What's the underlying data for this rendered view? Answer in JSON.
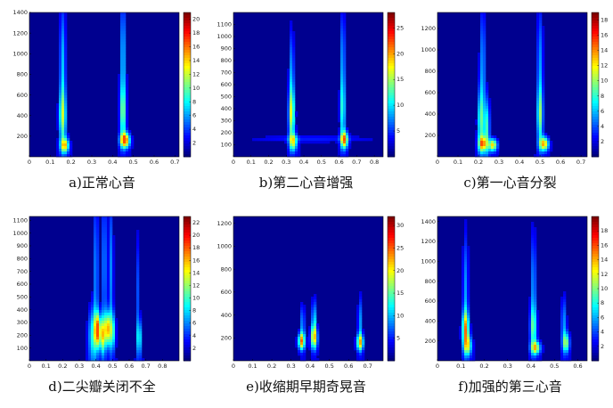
{
  "colors": {
    "jet_dark": "#00008f",
    "jet_blue": "#0000ff",
    "jet_cyan": "#00ffff",
    "jet_yellow": "#ffff00",
    "jet_red": "#ff0000",
    "jet_darkred": "#800000"
  },
  "chart_data": [
    {
      "type": "heatmap",
      "caption": "a)正常心音",
      "x_ticks": [
        "0",
        "0.1",
        "0.2",
        "0.3",
        "0.4",
        "0.5",
        "0.6",
        "0.7"
      ],
      "xlim": [
        0,
        0.72
      ],
      "y_ticks": [
        "200",
        "400",
        "600",
        "800",
        "1000",
        "1200",
        "1400"
      ],
      "ylim": [
        0,
        1400
      ],
      "colorbar_ticks": [
        "2",
        "4",
        "6",
        "8",
        "10",
        "12",
        "14",
        "16",
        "18",
        "20"
      ],
      "colorbar_max": 21,
      "components": [
        {
          "x": 0.16,
          "y": 390,
          "intensity": 0.55,
          "width": 0.012,
          "height": 180
        },
        {
          "x": 0.17,
          "y": 110,
          "intensity": 0.75,
          "width": 0.014,
          "height": 50
        },
        {
          "x": 0.16,
          "y": 900,
          "intensity": 0.35,
          "width": 0.01,
          "height": 400
        },
        {
          "x": 0.46,
          "y": 160,
          "intensity": 1.0,
          "width": 0.016,
          "height": 50
        },
        {
          "x": 0.45,
          "y": 420,
          "intensity": 0.5,
          "width": 0.01,
          "height": 180
        },
        {
          "x": 0.45,
          "y": 950,
          "intensity": 0.35,
          "width": 0.01,
          "height": 420
        }
      ]
    },
    {
      "type": "heatmap",
      "caption": "b)第二心音增强",
      "x_ticks": [
        "0",
        "0.1",
        "0.2",
        "0.3",
        "0.4",
        "0.5",
        "0.6",
        "0.7",
        "0.8"
      ],
      "xlim": [
        0,
        0.85
      ],
      "y_ticks": [
        "100",
        "200",
        "300",
        "400",
        "500",
        "600",
        "700",
        "800",
        "900",
        "1000",
        "1100"
      ],
      "ylim": [
        0,
        1200
      ],
      "colorbar_ticks": [
        "5",
        "10",
        "15",
        "20",
        "25"
      ],
      "colorbar_max": 28,
      "components": [
        {
          "x": 0.33,
          "y": 350,
          "intensity": 0.65,
          "width": 0.012,
          "height": 150
        },
        {
          "x": 0.34,
          "y": 120,
          "intensity": 0.6,
          "width": 0.016,
          "height": 50
        },
        {
          "x": 0.33,
          "y": 700,
          "intensity": 0.3,
          "width": 0.01,
          "height": 250
        },
        {
          "x": 0.63,
          "y": 140,
          "intensity": 0.85,
          "width": 0.014,
          "height": 50
        },
        {
          "x": 0.62,
          "y": 380,
          "intensity": 0.45,
          "width": 0.01,
          "height": 180
        },
        {
          "x": 0.62,
          "y": 820,
          "intensity": 0.3,
          "width": 0.01,
          "height": 280
        },
        {
          "x": 0.45,
          "y": 150,
          "intensity": 0.12,
          "width": 0.25,
          "height": 20
        }
      ]
    },
    {
      "type": "heatmap",
      "caption": "c)第一心音分裂",
      "x_ticks": [
        "0",
        "0.1",
        "0.2",
        "0.3",
        "0.4",
        "0.5",
        "0.6",
        "0.7"
      ],
      "xlim": [
        0,
        0.73
      ],
      "y_ticks": [
        "200",
        "400",
        "600",
        "800",
        "1000",
        "1200"
      ],
      "ylim": [
        0,
        1350
      ],
      "colorbar_ticks": [
        "2",
        "4",
        "6",
        "8",
        "10",
        "12",
        "14",
        "16",
        "18"
      ],
      "colorbar_max": 19,
      "components": [
        {
          "x": 0.21,
          "y": 340,
          "intensity": 0.5,
          "width": 0.01,
          "height": 200
        },
        {
          "x": 0.24,
          "y": 280,
          "intensity": 0.5,
          "width": 0.01,
          "height": 180
        },
        {
          "x": 0.22,
          "y": 120,
          "intensity": 0.75,
          "width": 0.014,
          "height": 50
        },
        {
          "x": 0.27,
          "y": 110,
          "intensity": 0.8,
          "width": 0.014,
          "height": 40
        },
        {
          "x": 0.22,
          "y": 850,
          "intensity": 0.3,
          "width": 0.01,
          "height": 380
        },
        {
          "x": 0.52,
          "y": 120,
          "intensity": 0.85,
          "width": 0.015,
          "height": 45
        },
        {
          "x": 0.5,
          "y": 380,
          "intensity": 0.5,
          "width": 0.01,
          "height": 180
        },
        {
          "x": 0.5,
          "y": 850,
          "intensity": 0.3,
          "width": 0.01,
          "height": 380
        }
      ]
    },
    {
      "type": "heatmap",
      "caption": "d)二尖瓣关闭不全",
      "x_ticks": [
        "0",
        "0.1",
        "0.2",
        "0.3",
        "0.4",
        "0.5",
        "0.6",
        "0.7",
        "0.8"
      ],
      "xlim": [
        0,
        0.9
      ],
      "y_ticks": [
        "100",
        "200",
        "300",
        "400",
        "500",
        "600",
        "700",
        "800",
        "900",
        "1000",
        "1100"
      ],
      "ylim": [
        0,
        1130
      ],
      "colorbar_ticks": [
        "2",
        "4",
        "6",
        "8",
        "10",
        "12",
        "14",
        "16",
        "18",
        "20",
        "22"
      ],
      "colorbar_max": 23,
      "components": [
        {
          "x": 0.38,
          "y": 200,
          "intensity": 0.45,
          "width": 0.018,
          "height": 150
        },
        {
          "x": 0.41,
          "y": 240,
          "intensity": 0.9,
          "width": 0.012,
          "height": 90
        },
        {
          "x": 0.44,
          "y": 200,
          "intensity": 0.7,
          "width": 0.012,
          "height": 100
        },
        {
          "x": 0.47,
          "y": 250,
          "intensity": 0.8,
          "width": 0.012,
          "height": 90
        },
        {
          "x": 0.5,
          "y": 230,
          "intensity": 0.5,
          "width": 0.012,
          "height": 100
        },
        {
          "x": 0.4,
          "y": 700,
          "intensity": 0.3,
          "width": 0.01,
          "height": 420
        },
        {
          "x": 0.45,
          "y": 750,
          "intensity": 0.3,
          "width": 0.01,
          "height": 420
        },
        {
          "x": 0.49,
          "y": 700,
          "intensity": 0.28,
          "width": 0.01,
          "height": 420
        },
        {
          "x": 0.66,
          "y": 180,
          "intensity": 0.45,
          "width": 0.01,
          "height": 100
        },
        {
          "x": 0.65,
          "y": 550,
          "intensity": 0.2,
          "width": 0.008,
          "height": 300
        }
      ]
    },
    {
      "type": "heatmap",
      "caption": "e)收缩期早期奇晃音",
      "x_ticks": [
        "0",
        "0.1",
        "0.2",
        "0.3",
        "0.4",
        "0.5",
        "0.6",
        "0.7"
      ],
      "xlim": [
        0,
        0.78
      ],
      "y_ticks": [
        "200",
        "400",
        "600",
        "800",
        "1000",
        "1200"
      ],
      "ylim": [
        0,
        1260
      ],
      "colorbar_ticks": [
        "5",
        "10",
        "15",
        "20",
        "25",
        "30"
      ],
      "colorbar_max": 32,
      "components": [
        {
          "x": 0.355,
          "y": 170,
          "intensity": 0.85,
          "width": 0.012,
          "height": 50
        },
        {
          "x": 0.42,
          "y": 200,
          "intensity": 0.75,
          "width": 0.012,
          "height": 70
        },
        {
          "x": 0.42,
          "y": 360,
          "intensity": 0.4,
          "width": 0.008,
          "height": 120
        },
        {
          "x": 0.36,
          "y": 320,
          "intensity": 0.3,
          "width": 0.008,
          "height": 120
        },
        {
          "x": 0.66,
          "y": 160,
          "intensity": 0.75,
          "width": 0.012,
          "height": 50
        },
        {
          "x": 0.66,
          "y": 340,
          "intensity": 0.3,
          "width": 0.008,
          "height": 150
        }
      ]
    },
    {
      "type": "heatmap",
      "caption": "f)加强的第三心音",
      "x_ticks": [
        "0",
        "0.1",
        "0.2",
        "0.3",
        "0.4",
        "0.5",
        "0.6"
      ],
      "xlim": [
        0,
        0.64
      ],
      "y_ticks": [
        "200",
        "400",
        "600",
        "800",
        "1000",
        "1200",
        "1400"
      ],
      "ylim": [
        0,
        1450
      ],
      "colorbar_ticks": [
        "2",
        "4",
        "6",
        "8",
        "10",
        "12",
        "14",
        "16",
        "18"
      ],
      "colorbar_max": 20,
      "components": [
        {
          "x": 0.12,
          "y": 320,
          "intensity": 0.75,
          "width": 0.01,
          "height": 120
        },
        {
          "x": 0.13,
          "y": 150,
          "intensity": 0.6,
          "width": 0.012,
          "height": 70
        },
        {
          "x": 0.12,
          "y": 700,
          "intensity": 0.3,
          "width": 0.008,
          "height": 400
        },
        {
          "x": 0.42,
          "y": 130,
          "intensity": 0.7,
          "width": 0.014,
          "height": 45
        },
        {
          "x": 0.41,
          "y": 330,
          "intensity": 0.45,
          "width": 0.01,
          "height": 150
        },
        {
          "x": 0.41,
          "y": 750,
          "intensity": 0.3,
          "width": 0.008,
          "height": 380
        },
        {
          "x": 0.55,
          "y": 180,
          "intensity": 0.6,
          "width": 0.01,
          "height": 70
        },
        {
          "x": 0.54,
          "y": 380,
          "intensity": 0.3,
          "width": 0.008,
          "height": 180
        }
      ]
    }
  ]
}
